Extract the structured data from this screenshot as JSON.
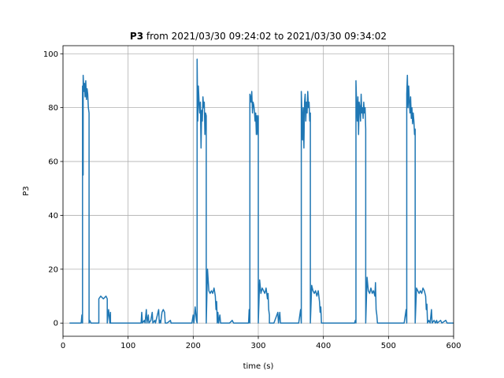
{
  "chart_data": {
    "type": "line",
    "title_bold": "P3",
    "title_rest": " from 2021/03/30 09:24:02 to 2021/03/30 09:34:02",
    "xlabel": "time (s)",
    "ylabel": "P3",
    "xlim": [
      0,
      600
    ],
    "ylim": [
      -4.9,
      103
    ],
    "xticks": [
      0,
      100,
      200,
      300,
      400,
      500,
      600
    ],
    "yticks": [
      0,
      20,
      40,
      60,
      80,
      100
    ],
    "grid": true,
    "series_color": "#1f77b4",
    "series": [
      {
        "values": [
          [
            10,
            0
          ],
          [
            28,
            0
          ],
          [
            29,
            3
          ],
          [
            30,
            0
          ],
          [
            30,
            88
          ],
          [
            31,
            55
          ],
          [
            31,
            92
          ],
          [
            32,
            86
          ],
          [
            33,
            89
          ],
          [
            34,
            84
          ],
          [
            35,
            90
          ],
          [
            36,
            83
          ],
          [
            37,
            87
          ],
          [
            38,
            85
          ],
          [
            39,
            80
          ],
          [
            40,
            78
          ],
          [
            40,
            0
          ],
          [
            41,
            1
          ],
          [
            43,
            0
          ],
          [
            55,
            0
          ],
          [
            55,
            9
          ],
          [
            58,
            10
          ],
          [
            62,
            9
          ],
          [
            66,
            10
          ],
          [
            68,
            9
          ],
          [
            68,
            0
          ],
          [
            70,
            5
          ],
          [
            72,
            0
          ],
          [
            73,
            4
          ],
          [
            73,
            0
          ],
          [
            120,
            0
          ],
          [
            121,
            4
          ],
          [
            122,
            0
          ],
          [
            125,
            1
          ],
          [
            126,
            0
          ],
          [
            128,
            5
          ],
          [
            129,
            0
          ],
          [
            131,
            3
          ],
          [
            132,
            0
          ],
          [
            135,
            1
          ],
          [
            137,
            4
          ],
          [
            138,
            0
          ],
          [
            141,
            1
          ],
          [
            142,
            0
          ],
          [
            147,
            5
          ],
          [
            148,
            0
          ],
          [
            149,
            1
          ],
          [
            150,
            0
          ],
          [
            152,
            4
          ],
          [
            154,
            5
          ],
          [
            156,
            4
          ],
          [
            157,
            0
          ],
          [
            158,
            0
          ],
          [
            160,
            0
          ],
          [
            165,
            1
          ],
          [
            166,
            0
          ],
          [
            178,
            0
          ],
          [
            180,
            0
          ],
          [
            198,
            0
          ],
          [
            200,
            3
          ],
          [
            201,
            0
          ],
          [
            203,
            6
          ],
          [
            205,
            1
          ],
          [
            206,
            0
          ],
          [
            206,
            98
          ],
          [
            207,
            75
          ],
          [
            208,
            88
          ],
          [
            209,
            82
          ],
          [
            210,
            78
          ],
          [
            211,
            82
          ],
          [
            212,
            65
          ],
          [
            213,
            79
          ],
          [
            214,
            75
          ],
          [
            215,
            84
          ],
          [
            216,
            80
          ],
          [
            217,
            82
          ],
          [
            218,
            70
          ],
          [
            219,
            78
          ],
          [
            220,
            77
          ],
          [
            220,
            0
          ],
          [
            222,
            20
          ],
          [
            224,
            12
          ],
          [
            226,
            11
          ],
          [
            228,
            12
          ],
          [
            230,
            11
          ],
          [
            232,
            13
          ],
          [
            234,
            10
          ],
          [
            235,
            5
          ],
          [
            236,
            8
          ],
          [
            237,
            0
          ],
          [
            238,
            4
          ],
          [
            239,
            0
          ],
          [
            241,
            3
          ],
          [
            242,
            0
          ],
          [
            248,
            0
          ],
          [
            250,
            0
          ],
          [
            256,
            0
          ],
          [
            260,
            1
          ],
          [
            262,
            0
          ],
          [
            268,
            0
          ],
          [
            272,
            0
          ],
          [
            278,
            0
          ],
          [
            285,
            0
          ],
          [
            286,
            5
          ],
          [
            287,
            0
          ],
          [
            287,
            85
          ],
          [
            288,
            84
          ],
          [
            289,
            82
          ],
          [
            290,
            86
          ],
          [
            291,
            78
          ],
          [
            292,
            82
          ],
          [
            293,
            81
          ],
          [
            294,
            79
          ],
          [
            295,
            75
          ],
          [
            296,
            78
          ],
          [
            297,
            70
          ],
          [
            298,
            77
          ],
          [
            299,
            70
          ],
          [
            300,
            77
          ],
          [
            300,
            0
          ],
          [
            302,
            16
          ],
          [
            304,
            11
          ],
          [
            306,
            13
          ],
          [
            308,
            12
          ],
          [
            310,
            11
          ],
          [
            312,
            13
          ],
          [
            314,
            9
          ],
          [
            315,
            11
          ],
          [
            316,
            5
          ],
          [
            317,
            3
          ],
          [
            317,
            0
          ],
          [
            320,
            0
          ],
          [
            324,
            0
          ],
          [
            330,
            4
          ],
          [
            331,
            0
          ],
          [
            333,
            4
          ],
          [
            334,
            0
          ],
          [
            336,
            0
          ],
          [
            342,
            0
          ],
          [
            348,
            0
          ],
          [
            354,
            0
          ],
          [
            358,
            0
          ],
          [
            362,
            0
          ],
          [
            365,
            5
          ],
          [
            366,
            0
          ],
          [
            366,
            86
          ],
          [
            367,
            78
          ],
          [
            368,
            68
          ],
          [
            369,
            80
          ],
          [
            370,
            65
          ],
          [
            371,
            82
          ],
          [
            372,
            85
          ],
          [
            373,
            75
          ],
          [
            374,
            82
          ],
          [
            375,
            78
          ],
          [
            376,
            86
          ],
          [
            377,
            80
          ],
          [
            378,
            82
          ],
          [
            379,
            75
          ],
          [
            380,
            78
          ],
          [
            380,
            0
          ],
          [
            382,
            14
          ],
          [
            384,
            12
          ],
          [
            386,
            11
          ],
          [
            388,
            12
          ],
          [
            390,
            10
          ],
          [
            392,
            12
          ],
          [
            394,
            8
          ],
          [
            395,
            4
          ],
          [
            396,
            6
          ],
          [
            397,
            0
          ],
          [
            400,
            0
          ],
          [
            402,
            0
          ],
          [
            408,
            0
          ],
          [
            412,
            0
          ],
          [
            418,
            0
          ],
          [
            424,
            0
          ],
          [
            430,
            0
          ],
          [
            435,
            0
          ],
          [
            440,
            0
          ],
          [
            445,
            0
          ],
          [
            448,
            0
          ],
          [
            449,
            1
          ],
          [
            450,
            0
          ],
          [
            450,
            90
          ],
          [
            451,
            82
          ],
          [
            452,
            75
          ],
          [
            453,
            84
          ],
          [
            454,
            70
          ],
          [
            455,
            82
          ],
          [
            456,
            80
          ],
          [
            457,
            75
          ],
          [
            458,
            85
          ],
          [
            459,
            78
          ],
          [
            460,
            80
          ],
          [
            461,
            76
          ],
          [
            462,
            82
          ],
          [
            463,
            78
          ],
          [
            464,
            80
          ],
          [
            465,
            72
          ],
          [
            465,
            0
          ],
          [
            467,
            17
          ],
          [
            469,
            12
          ],
          [
            471,
            11
          ],
          [
            473,
            13
          ],
          [
            475,
            11
          ],
          [
            477,
            12
          ],
          [
            479,
            10
          ],
          [
            480,
            15
          ],
          [
            481,
            5
          ],
          [
            482,
            3
          ],
          [
            483,
            0
          ],
          [
            485,
            0
          ],
          [
            492,
            0
          ],
          [
            498,
            0
          ],
          [
            503,
            0
          ],
          [
            506,
            0
          ],
          [
            509,
            0
          ],
          [
            512,
            0
          ],
          [
            516,
            0
          ],
          [
            519,
            0
          ],
          [
            521,
            0
          ],
          [
            524,
            0
          ],
          [
            527,
            5
          ],
          [
            528,
            0
          ],
          [
            528,
            85
          ],
          [
            529,
            92
          ],
          [
            530,
            80
          ],
          [
            531,
            88
          ],
          [
            532,
            82
          ],
          [
            533,
            78
          ],
          [
            534,
            84
          ],
          [
            535,
            76
          ],
          [
            536,
            80
          ],
          [
            537,
            74
          ],
          [
            538,
            78
          ],
          [
            539,
            75
          ],
          [
            540,
            70
          ],
          [
            541,
            72
          ],
          [
            541,
            0
          ],
          [
            543,
            13
          ],
          [
            545,
            12
          ],
          [
            547,
            11
          ],
          [
            549,
            12
          ],
          [
            551,
            11
          ],
          [
            553,
            13
          ],
          [
            555,
            12
          ],
          [
            557,
            10
          ],
          [
            558,
            5
          ],
          [
            559,
            7
          ],
          [
            560,
            0
          ],
          [
            562,
            1
          ],
          [
            564,
            0
          ],
          [
            566,
            5
          ],
          [
            567,
            0
          ],
          [
            570,
            1
          ],
          [
            572,
            0
          ],
          [
            574,
            1
          ],
          [
            575,
            0
          ],
          [
            580,
            1
          ],
          [
            582,
            0
          ],
          [
            588,
            1
          ],
          [
            590,
            0
          ],
          [
            595,
            0
          ],
          [
            600,
            0
          ]
        ]
      }
    ]
  }
}
